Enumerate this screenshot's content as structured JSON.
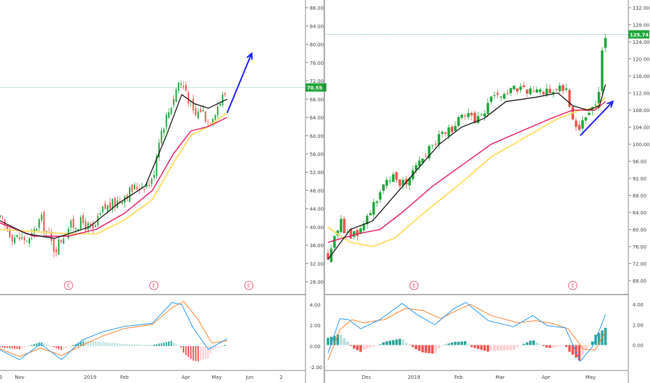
{
  "colors": {
    "up": "#26a69a",
    "candle_up": "#1ea63a",
    "down": "#ef5350",
    "ema_short": "#111111",
    "ema_mid": "#e91e63",
    "ema_long": "#ffe066",
    "arrow": "#1a1aff",
    "price_line": "#26a69a",
    "macd": "#2196f3",
    "signal": "#ff7f2a",
    "divider": "#555555",
    "earnings": "#e85a7a"
  },
  "earnings_marker": "E",
  "chart_data": [
    {
      "type": "candlestick",
      "title": "",
      "price_axis": {
        "ticks": [
          "88.00",
          "84.00",
          "80.00",
          "76.00",
          "72.00",
          "68.00",
          "64.00",
          "60.00",
          "56.00",
          "52.00",
          "48.00",
          "44.00",
          "40.00",
          "36.00",
          "32.00",
          "28.00"
        ],
        "min": 25.2,
        "max": 89.7
      },
      "last_price": "70.55",
      "last_value": 70.55,
      "time_axis": [
        "3",
        "Nov",
        "2019",
        "Feb",
        "Apr",
        "May",
        "Jun",
        "2"
      ],
      "time_axis_day": [
        3,
        30,
        131,
        180,
        268,
        312,
        359,
        404
      ],
      "x_range_days": [
        2,
        438
      ],
      "data_end_day": 327,
      "earnings_days": [
        100,
        222,
        358
      ],
      "closes": [
        {
          "day": 0,
          "v": 42
        },
        {
          "day": 20,
          "v": 38
        },
        {
          "day": 45,
          "v": 37
        },
        {
          "day": 60,
          "v": 42
        },
        {
          "day": 80,
          "v": 35
        },
        {
          "day": 100,
          "v": 40
        },
        {
          "day": 120,
          "v": 41
        },
        {
          "day": 135,
          "v": 39
        },
        {
          "day": 150,
          "v": 44
        },
        {
          "day": 165,
          "v": 45
        },
        {
          "day": 180,
          "v": 47
        },
        {
          "day": 200,
          "v": 49
        },
        {
          "day": 220,
          "v": 50
        },
        {
          "day": 230,
          "v": 60
        },
        {
          "day": 245,
          "v": 66
        },
        {
          "day": 258,
          "v": 72
        },
        {
          "day": 268,
          "v": 70
        },
        {
          "day": 280,
          "v": 64
        },
        {
          "day": 290,
          "v": 66
        },
        {
          "day": 300,
          "v": 63
        },
        {
          "day": 315,
          "v": 67
        },
        {
          "day": 327,
          "v": 70
        }
      ],
      "ema_short": [
        {
          "day": 0,
          "v": 41.5
        },
        {
          "day": 40,
          "v": 38.5
        },
        {
          "day": 80,
          "v": 37.5
        },
        {
          "day": 130,
          "v": 40
        },
        {
          "day": 170,
          "v": 45
        },
        {
          "day": 210,
          "v": 49
        },
        {
          "day": 240,
          "v": 60
        },
        {
          "day": 262,
          "v": 69
        },
        {
          "day": 280,
          "v": 67
        },
        {
          "day": 300,
          "v": 66
        },
        {
          "day": 327,
          "v": 68
        }
      ],
      "ema_mid": [
        {
          "day": 0,
          "v": 41
        },
        {
          "day": 50,
          "v": 38
        },
        {
          "day": 100,
          "v": 38
        },
        {
          "day": 140,
          "v": 39.5
        },
        {
          "day": 180,
          "v": 43
        },
        {
          "day": 220,
          "v": 48
        },
        {
          "day": 250,
          "v": 56
        },
        {
          "day": 275,
          "v": 61
        },
        {
          "day": 300,
          "v": 62
        },
        {
          "day": 327,
          "v": 64
        }
      ],
      "ema_long": [
        {
          "day": 0,
          "v": 39.5
        },
        {
          "day": 50,
          "v": 39
        },
        {
          "day": 100,
          "v": 38.5
        },
        {
          "day": 140,
          "v": 38.5
        },
        {
          "day": 180,
          "v": 41.5
        },
        {
          "day": 220,
          "v": 46
        },
        {
          "day": 250,
          "v": 54
        },
        {
          "day": 275,
          "v": 60
        },
        {
          "day": 300,
          "v": 62
        },
        {
          "day": 327,
          "v": 65
        }
      ],
      "arrow": {
        "from": {
          "day": 327,
          "v": 65
        },
        "to": {
          "day": 362,
          "v": 78
        }
      },
      "macd_axis": {
        "ticks": [
          "4.00",
          "2.00",
          "0.00",
          "-2.00"
        ],
        "min": -2.35,
        "max": 4.9
      },
      "macd": [
        {
          "day": 0,
          "v": -0.3
        },
        {
          "day": 30,
          "v": -1.3
        },
        {
          "day": 60,
          "v": 0.2
        },
        {
          "day": 90,
          "v": -1.3
        },
        {
          "day": 120,
          "v": 0.6
        },
        {
          "day": 150,
          "v": 1.4
        },
        {
          "day": 180,
          "v": 1.9
        },
        {
          "day": 220,
          "v": 2.2
        },
        {
          "day": 248,
          "v": 4.2
        },
        {
          "day": 262,
          "v": 4.0
        },
        {
          "day": 278,
          "v": 1.8
        },
        {
          "day": 300,
          "v": -0.3
        },
        {
          "day": 327,
          "v": 0.7
        }
      ],
      "signal": [
        {
          "day": 0,
          "v": -0.2
        },
        {
          "day": 30,
          "v": -1.0
        },
        {
          "day": 60,
          "v": -0.2
        },
        {
          "day": 90,
          "v": -0.9
        },
        {
          "day": 120,
          "v": 0.1
        },
        {
          "day": 150,
          "v": 1.0
        },
        {
          "day": 180,
          "v": 1.7
        },
        {
          "day": 220,
          "v": 2.1
        },
        {
          "day": 250,
          "v": 3.8
        },
        {
          "day": 265,
          "v": 4.3
        },
        {
          "day": 285,
          "v": 2.6
        },
        {
          "day": 305,
          "v": 0.3
        },
        {
          "day": 327,
          "v": 0.5
        }
      ]
    },
    {
      "type": "candlestick",
      "title": "",
      "price_axis": {
        "ticks": [
          "132.00",
          "128.00",
          "124.00",
          "120.00",
          "116.00",
          "112.00",
          "108.00",
          "104.00",
          "100.00",
          "96.00",
          "92.00",
          "88.00",
          "84.00",
          "80.00",
          "76.00",
          "72.00",
          "68.00"
        ],
        "min": 64.75,
        "max": 133.8
      },
      "last_price": "125.74",
      "last_value": 125.74,
      "time_axis": [
        "Dec",
        "2019",
        "Feb",
        "Mar",
        "Apr",
        "May"
      ],
      "time_axis_day": [
        36,
        68,
        98,
        126,
        157,
        187
      ],
      "x_range_days": [
        8,
        212
      ],
      "data_end_day": 197,
      "earnings_days": [
        68,
        175
      ],
      "closes": [
        {
          "day": 10,
          "v": 74
        },
        {
          "day": 18,
          "v": 82
        },
        {
          "day": 25,
          "v": 78
        },
        {
          "day": 32,
          "v": 80
        },
        {
          "day": 40,
          "v": 86
        },
        {
          "day": 48,
          "v": 90
        },
        {
          "day": 55,
          "v": 92
        },
        {
          "day": 63,
          "v": 91
        },
        {
          "day": 70,
          "v": 96
        },
        {
          "day": 80,
          "v": 100
        },
        {
          "day": 90,
          "v": 103
        },
        {
          "day": 100,
          "v": 106
        },
        {
          "day": 112,
          "v": 106
        },
        {
          "day": 120,
          "v": 110
        },
        {
          "day": 130,
          "v": 112
        },
        {
          "day": 140,
          "v": 113
        },
        {
          "day": 150,
          "v": 112
        },
        {
          "day": 160,
          "v": 113
        },
        {
          "day": 170,
          "v": 113
        },
        {
          "day": 178,
          "v": 103
        },
        {
          "day": 183,
          "v": 107
        },
        {
          "day": 188,
          "v": 108
        },
        {
          "day": 192,
          "v": 110
        },
        {
          "day": 195,
          "v": 122
        },
        {
          "day": 197,
          "v": 126
        }
      ],
      "ema_short": [
        {
          "day": 10,
          "v": 73
        },
        {
          "day": 25,
          "v": 80
        },
        {
          "day": 40,
          "v": 82
        },
        {
          "day": 55,
          "v": 88
        },
        {
          "day": 70,
          "v": 94
        },
        {
          "day": 85,
          "v": 100
        },
        {
          "day": 100,
          "v": 104
        },
        {
          "day": 115,
          "v": 106
        },
        {
          "day": 130,
          "v": 110
        },
        {
          "day": 150,
          "v": 111
        },
        {
          "day": 165,
          "v": 112
        },
        {
          "day": 175,
          "v": 109
        },
        {
          "day": 185,
          "v": 108
        },
        {
          "day": 193,
          "v": 109
        },
        {
          "day": 197,
          "v": 114
        }
      ],
      "ema_mid": [
        {
          "day": 10,
          "v": 77
        },
        {
          "day": 30,
          "v": 79
        },
        {
          "day": 45,
          "v": 80
        },
        {
          "day": 60,
          "v": 84
        },
        {
          "day": 80,
          "v": 90
        },
        {
          "day": 100,
          "v": 95
        },
        {
          "day": 120,
          "v": 100
        },
        {
          "day": 140,
          "v": 103
        },
        {
          "day": 160,
          "v": 106
        },
        {
          "day": 175,
          "v": 108
        },
        {
          "day": 190,
          "v": 108
        },
        {
          "day": 197,
          "v": 110
        }
      ],
      "ema_long": [
        {
          "day": 10,
          "v": 80.5
        },
        {
          "day": 25,
          "v": 77
        },
        {
          "day": 40,
          "v": 76
        },
        {
          "day": 55,
          "v": 78
        },
        {
          "day": 75,
          "v": 84
        },
        {
          "day": 100,
          "v": 91
        },
        {
          "day": 120,
          "v": 97
        },
        {
          "day": 145,
          "v": 102
        },
        {
          "day": 165,
          "v": 106
        },
        {
          "day": 180,
          "v": 108
        },
        {
          "day": 190,
          "v": 108.5
        },
        {
          "day": 197,
          "v": 111
        }
      ],
      "arrow": {
        "from": {
          "day": 180,
          "v": 102
        },
        "to": {
          "day": 202,
          "v": 110
        }
      },
      "macd_axis": {
        "ticks": [
          "4.00",
          "2.00",
          "0.00"
        ],
        "min": -2.5,
        "max": 4.9
      },
      "macd": [
        {
          "day": 10,
          "v": -0.8
        },
        {
          "day": 18,
          "v": 2.6
        },
        {
          "day": 24,
          "v": 2.5
        },
        {
          "day": 32,
          "v": 1.6
        },
        {
          "day": 45,
          "v": 2.5
        },
        {
          "day": 60,
          "v": 4.1
        },
        {
          "day": 70,
          "v": 3.0
        },
        {
          "day": 82,
          "v": 2.0
        },
        {
          "day": 95,
          "v": 3.6
        },
        {
          "day": 103,
          "v": 4.2
        },
        {
          "day": 118,
          "v": 2.4
        },
        {
          "day": 135,
          "v": 1.8
        },
        {
          "day": 148,
          "v": 2.9
        },
        {
          "day": 158,
          "v": 1.9
        },
        {
          "day": 170,
          "v": 1.7
        },
        {
          "day": 180,
          "v": -1.6
        },
        {
          "day": 188,
          "v": -0.2
        },
        {
          "day": 193,
          "v": 1.5
        },
        {
          "day": 197,
          "v": 3.0
        }
      ],
      "signal": [
        {
          "day": 10,
          "v": -1.5
        },
        {
          "day": 18,
          "v": 1.5
        },
        {
          "day": 26,
          "v": 2.5
        },
        {
          "day": 34,
          "v": 2.2
        },
        {
          "day": 48,
          "v": 2.5
        },
        {
          "day": 62,
          "v": 3.6
        },
        {
          "day": 74,
          "v": 3.4
        },
        {
          "day": 86,
          "v": 2.6
        },
        {
          "day": 98,
          "v": 3.5
        },
        {
          "day": 106,
          "v": 4.0
        },
        {
          "day": 120,
          "v": 2.9
        },
        {
          "day": 138,
          "v": 2.2
        },
        {
          "day": 150,
          "v": 2.4
        },
        {
          "day": 162,
          "v": 2.1
        },
        {
          "day": 172,
          "v": 1.6
        },
        {
          "day": 182,
          "v": -0.4
        },
        {
          "day": 190,
          "v": -0.5
        },
        {
          "day": 197,
          "v": 1.3
        }
      ]
    }
  ]
}
